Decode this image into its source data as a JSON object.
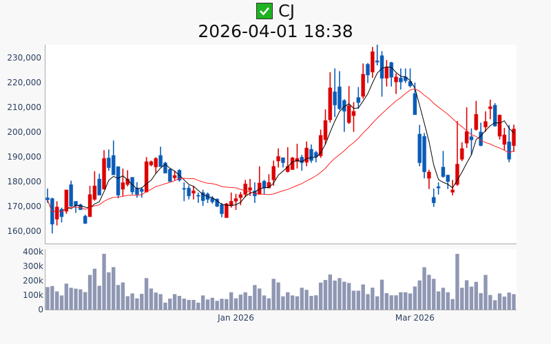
{
  "header": {
    "status_icon": "green-check-icon",
    "ticker": "CJ",
    "timestamp": "2026-04-01 18:38"
  },
  "colors": {
    "up": "#dd0000",
    "down": "#0a5cb8",
    "ma_short": "#000000",
    "ma_long": "#ff2020",
    "volume": "#8f97b3"
  },
  "chart_data": [
    {
      "type": "candlestick",
      "title": "CJ",
      "price_axis": {
        "ylim": [
          155000,
          236000
        ],
        "ticks": [
          160000,
          170000,
          180000,
          190000,
          200000,
          210000,
          220000,
          230000
        ],
        "tick_labels": [
          "160,000",
          "170,000",
          "180,000",
          "190,000",
          "200,000",
          "210,000",
          "220,000",
          "230,000"
        ]
      },
      "x_ticks": [
        {
          "label": "Jan 2026",
          "index": 40
        },
        {
          "label": "Mar 2026",
          "index": 78
        }
      ],
      "price_unit": 1000,
      "series_ohlc_note": "[open, high, low, close] in thousands KRW",
      "ohlc": [
        [
          173.5,
          177.2,
          171.4,
          172.6
        ],
        [
          173.2,
          173.5,
          159.1,
          162.8
        ],
        [
          164.8,
          172.1,
          162.3,
          169.8
        ],
        [
          168.9,
          169.5,
          163.5,
          165.8
        ],
        [
          168.0,
          176.7,
          167.0,
          176.7
        ],
        [
          178.8,
          180.4,
          169.8,
          170.0
        ],
        [
          172.1,
          172.1,
          167.4,
          170.2
        ],
        [
          170.7,
          171.1,
          168.6,
          168.6
        ],
        [
          166.1,
          166.7,
          162.9,
          163.1
        ],
        [
          165.8,
          178.3,
          165.8,
          174.8
        ],
        [
          172.8,
          184.2,
          172.3,
          178.3
        ],
        [
          181.1,
          183.2,
          174.5,
          174.5
        ],
        [
          176.9,
          192.7,
          176.9,
          189.4
        ],
        [
          189.6,
          193.0,
          184.4,
          185.6
        ],
        [
          190.6,
          196.6,
          182.7,
          182.7
        ],
        [
          186.1,
          186.1,
          173.3,
          174.5
        ],
        [
          176.9,
          185.3,
          174.2,
          179.6
        ],
        [
          178.8,
          184.6,
          178.1,
          181.1
        ],
        [
          181.8,
          181.8,
          174.8,
          175.8
        ],
        [
          177.4,
          179.8,
          173.5,
          174.8
        ],
        [
          177.0,
          177.7,
          173.5,
          176.0
        ],
        [
          175.8,
          189.9,
          175.6,
          188.1
        ],
        [
          186.7,
          188.5,
          186.2,
          188.1
        ],
        [
          185.9,
          189.9,
          183.2,
          189.4
        ],
        [
          190.6,
          194.1,
          186.0,
          186.0
        ],
        [
          187.6,
          188.0,
          183.4,
          183.4
        ],
        [
          185.0,
          185.3,
          180.0,
          180.0
        ],
        [
          181.5,
          184.4,
          180.6,
          182.5
        ],
        [
          184.6,
          185.0,
          180.0,
          180.6
        ],
        [
          177.3,
          179.7,
          172.1,
          177.0
        ],
        [
          177.4,
          178.5,
          172.8,
          174.2
        ],
        [
          175.3,
          178.3,
          172.8,
          176.3
        ],
        [
          174.5,
          175.6,
          171.4,
          174.3
        ],
        [
          175.6,
          176.7,
          170.2,
          172.3
        ],
        [
          175.1,
          175.6,
          171.4,
          172.8
        ],
        [
          173.4,
          174.2,
          171.1,
          171.8
        ],
        [
          173.0,
          173.2,
          169.7,
          170.0
        ],
        [
          170.7,
          171.4,
          165.6,
          167.0
        ],
        [
          165.4,
          171.4,
          165.4,
          171.1
        ],
        [
          170.2,
          175.6,
          169.5,
          172.1
        ],
        [
          172.1,
          175.1,
          168.6,
          173.2
        ],
        [
          173.5,
          175.8,
          170.5,
          174.8
        ],
        [
          174.8,
          180.7,
          173.7,
          179.1
        ],
        [
          176.5,
          181.1,
          174.2,
          177.6
        ],
        [
          176.3,
          179.7,
          171.4,
          174.2
        ],
        [
          174.8,
          186.2,
          174.8,
          179.5
        ],
        [
          180.2,
          180.7,
          174.8,
          177.4
        ],
        [
          177.4,
          183.0,
          177.4,
          179.7
        ],
        [
          180.7,
          188.5,
          178.3,
          186.2
        ],
        [
          188.3,
          193.4,
          185.7,
          190.2
        ],
        [
          189.7,
          189.7,
          185.7,
          187.6
        ],
        [
          184.0,
          193.9,
          183.7,
          186.2
        ],
        [
          184.8,
          190.0,
          184.8,
          189.6
        ],
        [
          188.1,
          195.3,
          185.3,
          189.4
        ],
        [
          189.9,
          190.8,
          184.4,
          187.6
        ],
        [
          187.8,
          196.2,
          186.2,
          193.6
        ],
        [
          193.1,
          195.0,
          187.6,
          188.5
        ],
        [
          191.8,
          192.4,
          187.8,
          189.9
        ],
        [
          190.4,
          201.0,
          189.6,
          198.7
        ],
        [
          196.9,
          209.2,
          195.0,
          204.7
        ],
        [
          204.9,
          224.2,
          203.8,
          217.9
        ],
        [
          216.3,
          225.7,
          206.1,
          210.9
        ],
        [
          218.3,
          224.6,
          208.9,
          209.4
        ],
        [
          212.8,
          213.3,
          200.1,
          208.4
        ],
        [
          203.8,
          218.6,
          203.3,
          210.7
        ],
        [
          206.6,
          212.1,
          200.1,
          208.4
        ],
        [
          214.0,
          218.2,
          209.4,
          211.9
        ],
        [
          214.4,
          227.7,
          213.5,
          223.4
        ],
        [
          227.4,
          227.9,
          219.8,
          223.0
        ],
        [
          224.2,
          234.4,
          221.9,
          232.5
        ],
        [
          228.8,
          235.3,
          226.9,
          228.2
        ],
        [
          230.9,
          232.7,
          214.3,
          221.7
        ],
        [
          221.7,
          229.1,
          218.4,
          226.3
        ],
        [
          228.1,
          228.4,
          218.4,
          222.1
        ],
        [
          220.2,
          223.7,
          215.4,
          222.3
        ],
        [
          221.9,
          225.7,
          217.2,
          220.2
        ],
        [
          222.3,
          225.7,
          219.8,
          220.7
        ],
        [
          220.5,
          225.7,
          218.0,
          218.6
        ],
        [
          215.6,
          220.0,
          207.0,
          207.0
        ],
        [
          199.2,
          202.9,
          186.2,
          187.6
        ],
        [
          198.3,
          199.6,
          181.3,
          183.9
        ],
        [
          181.3,
          184.8,
          177.0,
          183.9
        ],
        [
          173.7,
          177.2,
          169.8,
          171.4
        ],
        [
          178.0,
          179.7,
          174.8,
          177.4
        ],
        [
          185.9,
          192.4,
          181.6,
          182.0
        ],
        [
          182.7,
          182.7,
          177.0,
          180.0
        ],
        [
          175.7,
          180.7,
          174.5,
          176.7
        ],
        [
          178.8,
          204.5,
          178.3,
          187.1
        ],
        [
          189.0,
          195.9,
          188.3,
          193.4
        ],
        [
          195.5,
          210.0,
          193.6,
          200.3
        ],
        [
          198.2,
          201.5,
          190.8,
          196.8
        ],
        [
          201.0,
          212.6,
          200.6,
          207.2
        ],
        [
          200.1,
          203.8,
          194.3,
          194.5
        ],
        [
          202.0,
          208.4,
          200.1,
          204.3
        ],
        [
          209.4,
          213.1,
          205.2,
          210.3
        ],
        [
          210.9,
          211.7,
          202.2,
          202.4
        ],
        [
          198.3,
          207.1,
          197.0,
          206.9
        ],
        [
          195.0,
          201.7,
          192.7,
          198.9
        ],
        [
          196.1,
          202.9,
          187.8,
          189.0
        ],
        [
          194.5,
          203.0,
          192.0,
          201.3
        ]
      ],
      "moving_averages": [
        {
          "name": "MA5",
          "window": 5,
          "color": "#000000"
        },
        {
          "name": "MA20",
          "window": 20,
          "color": "#ff2020"
        }
      ]
    },
    {
      "type": "bar",
      "name": "volume",
      "ylim": [
        0,
        400000
      ],
      "ticks": [
        0,
        100000,
        200000,
        300000,
        400000
      ],
      "tick_labels": [
        "0",
        "100k",
        "200k",
        "300k",
        "400k"
      ],
      "values_k": [
        156,
        163,
        126,
        98,
        180,
        151,
        145,
        140,
        121,
        240,
        283,
        165,
        386,
        258,
        294,
        170,
        188,
        93,
        112,
        78,
        109,
        218,
        146,
        118,
        107,
        48,
        76,
        107,
        95,
        76,
        67,
        67,
        48,
        98,
        70,
        82,
        61,
        75,
        73,
        120,
        78,
        104,
        120,
        95,
        170,
        146,
        98,
        78,
        213,
        188,
        92,
        120,
        98,
        92,
        151,
        137,
        95,
        99,
        187,
        205,
        243,
        201,
        218,
        193,
        184,
        131,
        131,
        174,
        107,
        152,
        92,
        207,
        114,
        99,
        99,
        120,
        120,
        112,
        160,
        202,
        293,
        241,
        213,
        126,
        151,
        120,
        73,
        386,
        151,
        203,
        159,
        192,
        114,
        240,
        101,
        65,
        112,
        90,
        118,
        107
      ]
    }
  ]
}
